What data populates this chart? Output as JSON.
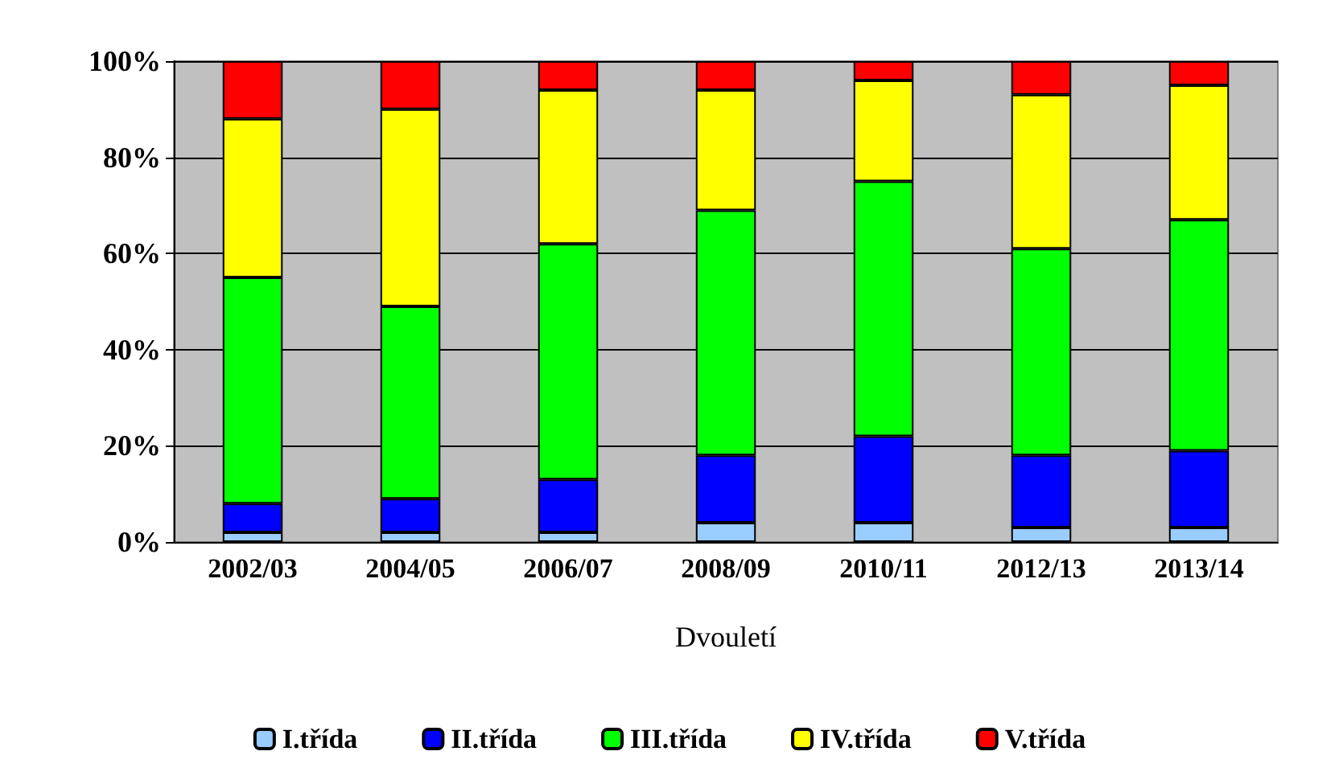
{
  "chart_data": {
    "type": "bar",
    "stacked": true,
    "xlabel": "Dvouletí",
    "categories": [
      "2002/03",
      "2004/05",
      "2006/07",
      "2008/09",
      "2010/11",
      "2012/13",
      "2013/14"
    ],
    "series": [
      {
        "name": "I.třída",
        "color": "#99ccff",
        "values": [
          2,
          2,
          2,
          4,
          4,
          3,
          3
        ]
      },
      {
        "name": "II.třída",
        "color": "#0000ff",
        "values": [
          6,
          7,
          11,
          14,
          18,
          15,
          16
        ]
      },
      {
        "name": "III.třída",
        "color": "#00ff00",
        "values": [
          47,
          40,
          49,
          51,
          53,
          43,
          48
        ]
      },
      {
        "name": "IV.třída",
        "color": "#ffff00",
        "values": [
          33,
          41,
          32,
          25,
          21,
          32,
          28
        ]
      },
      {
        "name": "V.třída",
        "color": "#ff0000",
        "values": [
          12,
          10,
          6,
          6,
          4,
          7,
          5
        ]
      }
    ],
    "ylim": [
      0,
      100
    ],
    "yticks": [
      {
        "value": 0,
        "label": "0%"
      },
      {
        "value": 20,
        "label": "20%"
      },
      {
        "value": 40,
        "label": "40%"
      },
      {
        "value": 60,
        "label": "60%"
      },
      {
        "value": 80,
        "label": "80%"
      },
      {
        "value": 100,
        "label": "100%"
      }
    ],
    "grid": "y",
    "legend": "bottom"
  }
}
